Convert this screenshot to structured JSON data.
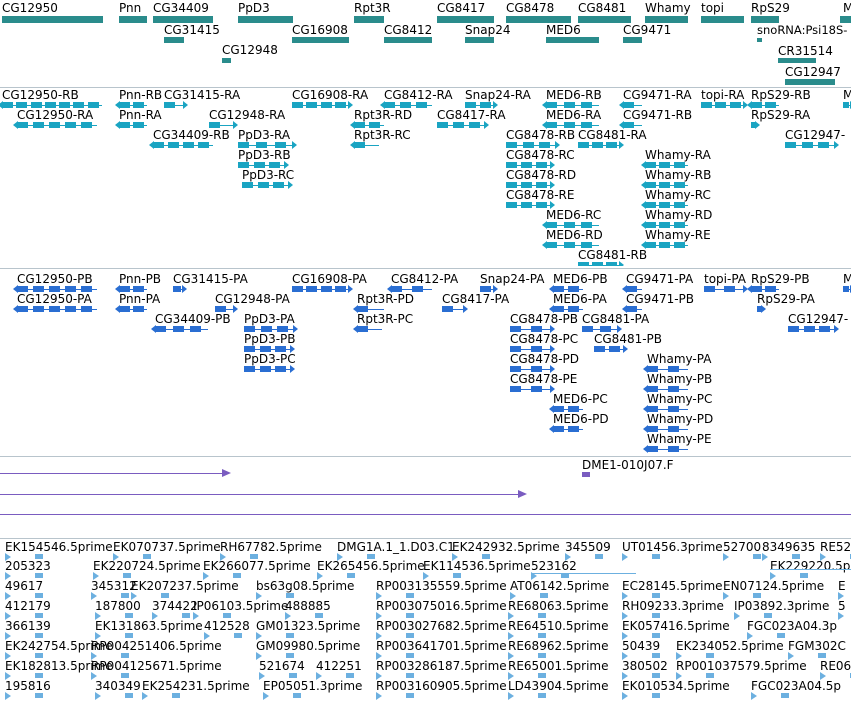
{
  "colors": {
    "gene": "#2a8c8c",
    "transcript": "#1aa4c2",
    "protein": "#2a6ed2",
    "clone": "#7a5cc0",
    "est": "#6cb0e0",
    "separator": "#b8c4cc"
  },
  "tracks": {
    "gene_labels": [
      "CG12950",
      "Pnn",
      "CG34409",
      "PpD3",
      "Rpt3R",
      "CG8417",
      "CG8478",
      "CG8481",
      "Whamy",
      "topi",
      "RpS29",
      "M",
      "CG31415",
      "CG16908",
      "CG8412",
      "Snap24",
      "MED6",
      "CG9471",
      "snoRNA:Psi18S-",
      "CG12948",
      "CR31514",
      "CG12947"
    ],
    "transcript_labels": [
      "CG12950-RB",
      "Pnn-RB",
      "CG31415-RA",
      "CG16908-RA",
      "CG8412-RA",
      "Snap24-RA",
      "MED6-RB",
      "CG9471-RA",
      "topi-RA",
      "RpS29-RB",
      "M",
      "CG12950-RA",
      "Pnn-RA",
      "CG12948-RA",
      "Rpt3R-RD",
      "CG8417-RA",
      "MED6-RA",
      "CG9471-RB",
      "RpS29-RA",
      "CG34409-RB",
      "PpD3-RA",
      "Rpt3R-RC",
      "CG8478-RB",
      "CG8481-RA",
      "CG12947-",
      "PpD3-RB",
      "CG8478-RC",
      "Whamy-RA",
      "PpD3-RC",
      "CG8478-RD",
      "Whamy-RB",
      "CG8478-RE",
      "Whamy-RC",
      "MED6-RC",
      "Whamy-RD",
      "MED6-RD",
      "Whamy-RE",
      "CG8481-RB"
    ],
    "protein_labels": [
      "CG12950-PB",
      "Pnn-PB",
      "CG31415-PA",
      "CG16908-PA",
      "CG8412-PA",
      "Snap24-PA",
      "MED6-PB",
      "CG9471-PA",
      "topi-PA",
      "RpS29-PB",
      "M",
      "CG12950-PA",
      "Pnn-PA",
      "CG12948-PA",
      "Rpt3R-PD",
      "CG8417-PA",
      "MED6-PA",
      "CG9471-PB",
      "RpS29-PA",
      "CG34409-PB",
      "PpD3-PA",
      "Rpt3R-PC",
      "CG8478-PB",
      "CG8481-PA",
      "CG12947-",
      "PpD3-PB",
      "CG8481-PB",
      "CG8478-PC",
      "PpD3-PC",
      "CG8478-PD",
      "Whamy-PA",
      "CG8478-PE",
      "Whamy-PB",
      "MED6-PC",
      "Whamy-PC",
      "MED6-PD",
      "Whamy-PD",
      "Whamy-PE"
    ],
    "clone_labels": [
      "DME1-010J07.F"
    ],
    "est_labels": [
      "EK154546.5prime",
      "EK070737.5prime",
      "RH67782.5prime",
      "DMG1A.1_1.D03.C1",
      "EK242932.5prime",
      "345509",
      "UT01456.3prime",
      "52700",
      "8349635",
      "RE52",
      "205323",
      "EK220724.5prime",
      "EK266077.5prime",
      "EK265456.5prime",
      "EK114536.5prime",
      "523162",
      "EK229220.5p",
      "49617",
      "345312",
      "EK207237.5prime",
      "bs63g08.5prime",
      "RP003135559.5prime",
      "AT06142.5prime",
      "EC28145.5prime",
      "EN07124.5prime",
      "E",
      "412179",
      "187800",
      "374422",
      "IP06103.5prime",
      "488885",
      "RP003075016.5prime",
      "RE68063.5prime",
      "RH09233.3prime",
      "IP03892.3prime",
      "5",
      "366139",
      "EK131863.5prime",
      "412528",
      "GM01323.5prime",
      "RP003027682.5prime",
      "RE64510.5prime",
      "EK057416.5prime",
      "FGC023A04.3p",
      "EK242754.5prime",
      "RP004251406.5prime",
      "GM09980.5prime",
      "RP003641701.5prime",
      "RE68962.5prime",
      "50439",
      "EK234052.5prime",
      "FGM302C",
      "EK182813.5prime",
      "RP004125671.5prime",
      "521674",
      "412251",
      "RP003286187.5prime",
      "RE65001.5prime",
      "380502",
      "RP001037579.5prime",
      "RE06",
      "195816",
      "340349",
      "EK254231.5prime",
      "EP05051.3prime",
      "RP003160905.5prime",
      "LD43904.5prime",
      "EK010534.5prime",
      "FGC023A04.5p"
    ]
  }
}
